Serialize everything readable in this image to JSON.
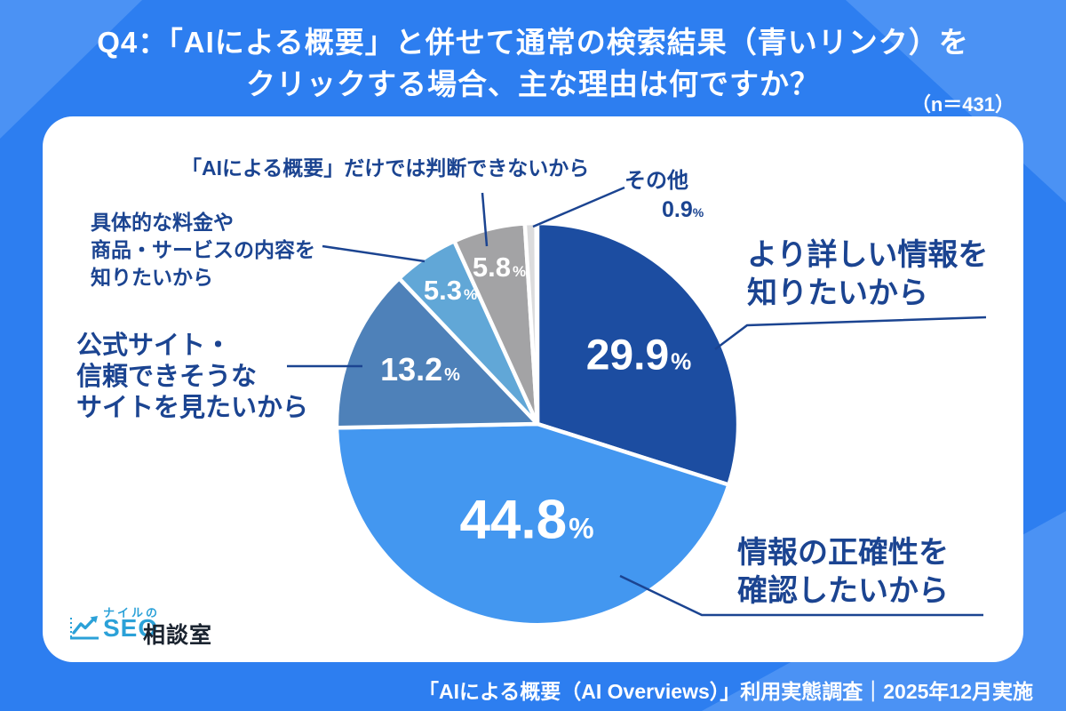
{
  "header": {
    "question_line1": "Q4：「AIによる概要」と併せて通常の検索結果（青いリンク）を",
    "question_line2": "クリックする場合、主な理由は何ですか？",
    "sample_size": "（n＝431）"
  },
  "chart_data": {
    "type": "pie",
    "n": 431,
    "unit": "%",
    "start_angle_deg": 0,
    "direction": "clockwise",
    "total": 100,
    "segments": [
      {
        "label": "より詳しい情報を知りたいから",
        "value": "29.9",
        "color": "#1c4da1"
      },
      {
        "label": "情報の正確性を確認したいから",
        "value": "44.8",
        "color": "#4397f0"
      },
      {
        "label": "公式サイト・信頼できそうなサイトを見たいから",
        "value": "13.2",
        "color": "#4e81b9"
      },
      {
        "label": "具体的な料金や商品・サービスの内容を知りたいから",
        "value": "5.3",
        "color": "#61a7d7"
      },
      {
        "label": "「AIによる概要」だけでは判断できないから",
        "value": "5.8",
        "color": "#a3a3a5"
      },
      {
        "label": "その他",
        "value": "0.9",
        "color": "#dcdcdd"
      }
    ]
  },
  "callouts": {
    "detail": [
      "より詳しい情報を",
      "知りたいから"
    ],
    "accuracy": [
      "情報の正確性を",
      "確認したいから"
    ],
    "official": [
      "公式サイト・",
      "信頼できそうな",
      "サイトを見たいから"
    ],
    "price": [
      "具体的な料金や",
      "商品・サービスの内容を",
      "知りたいから"
    ],
    "ai_only": [
      "「AIによる概要」だけでは判断できないから"
    ],
    "other": [
      "その他"
    ]
  },
  "logo": {
    "brand_top": "ナイルの",
    "brand_seo": "SEO",
    "brand_room": "相談室"
  },
  "footer": {
    "source": "「AIによる概要（AI Overviews）」利用実態調査｜2025年12月実施"
  },
  "colors": {
    "background": "#2d7ef0",
    "background_light": "#4b92f4",
    "label_blue": "#1b4491",
    "logo_blue": "#2ba1d8",
    "logo_dark": "#1b2430",
    "card": "#ffffff"
  }
}
